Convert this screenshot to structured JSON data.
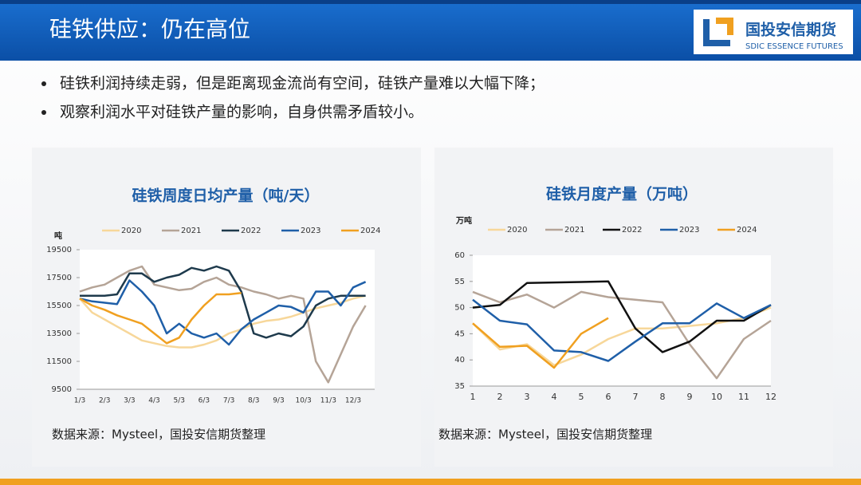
{
  "header": {
    "title": "硅铁供应：仍在高位",
    "logo_cn": "国投安信期货",
    "logo_en": "SDIC ESSENCE FUTURES"
  },
  "bullets": [
    "硅铁利润持续走弱，但是距离现金流尚有空间，硅铁产量难以大幅下降；",
    "观察利润水平对硅铁产量的影响，自身供需矛盾较小。"
  ],
  "sources": [
    "数据来源：Mysteel，国投安信期货整理",
    "数据来源：Mysteel，国投安信期货整理"
  ],
  "chart_data": [
    {
      "type": "line",
      "title": "硅铁周度日均产量（吨/天）",
      "y_label": "吨",
      "categories": [
        "1/3",
        null,
        "2/3",
        null,
        "3/3",
        null,
        "4/3",
        null,
        "5/3",
        null,
        "6/3",
        null,
        "7/3",
        null,
        "8/3",
        null,
        "9/3",
        null,
        "10/3",
        null,
        "11/3",
        null,
        "12/3",
        null
      ],
      "ylim": [
        9500,
        19500
      ],
      "yticks": [
        9500,
        11500,
        13500,
        15500,
        17500,
        19500
      ],
      "series": [
        {
          "name": "2020",
          "color": "#f7d79a",
          "values": [
            16000,
            15000,
            14500,
            14000,
            13500,
            13000,
            12800,
            12600,
            12500,
            12500,
            12700,
            13000,
            13500,
            13800,
            14200,
            14400,
            14500,
            14700,
            15000,
            15300,
            15500,
            15700,
            16000,
            16200
          ]
        },
        {
          "name": "2021",
          "color": "#b5a497",
          "values": [
            16500,
            16800,
            17000,
            17500,
            18000,
            18300,
            17000,
            16800,
            16600,
            16700,
            17200,
            17500,
            17000,
            16800,
            16500,
            16300,
            16000,
            16200,
            16000,
            11500,
            10000,
            12000,
            14000,
            15500
          ]
        },
        {
          "name": "2022",
          "color": "#1e3a4c",
          "values": [
            16200,
            16200,
            16200,
            16300,
            17800,
            17800,
            17200,
            17500,
            17700,
            18200,
            18000,
            18300,
            18000,
            16500,
            13500,
            13200,
            13500,
            13300,
            14000,
            15500,
            16000,
            16200,
            16200,
            16200
          ]
        },
        {
          "name": "2023",
          "color": "#1f5fa8",
          "values": [
            16000,
            15800,
            15700,
            15600,
            17300,
            16500,
            15500,
            13500,
            14200,
            13500,
            13200,
            13500,
            12700,
            13800,
            14500,
            15000,
            15500,
            15400,
            15000,
            16500,
            16500,
            15500,
            16800,
            17200
          ]
        },
        {
          "name": "2024",
          "color": "#f0a020",
          "values": [
            16000,
            15500,
            15200,
            14800,
            14500,
            14200,
            13500,
            12800,
            13200,
            14500,
            15500,
            16300,
            16300,
            16400,
            null,
            null,
            null,
            null,
            null,
            null,
            null,
            null,
            null,
            null
          ]
        }
      ]
    },
    {
      "type": "line",
      "title": "硅铁月度产量（万吨）",
      "y_label": "万吨",
      "categories": [
        "1",
        "2",
        "3",
        "4",
        "5",
        "6",
        "7",
        "8",
        "9",
        "10",
        "11",
        "12"
      ],
      "ylim": [
        35,
        60
      ],
      "yticks": [
        35,
        40,
        45,
        50,
        55,
        60
      ],
      "series": [
        {
          "name": "2020",
          "color": "#f7d79a",
          "values": [
            47,
            42,
            43,
            39,
            41,
            44,
            46,
            46,
            46.5,
            47,
            48,
            50
          ]
        },
        {
          "name": "2021",
          "color": "#b5a497",
          "values": [
            53,
            51,
            52.5,
            50,
            53,
            52,
            51.5,
            51,
            43,
            36.5,
            44,
            47.5
          ]
        },
        {
          "name": "2022",
          "color": "#111111",
          "values": [
            50,
            50.5,
            54.7,
            54.8,
            54.9,
            55,
            46,
            41.5,
            43.5,
            47.5,
            47.5,
            50.5
          ]
        },
        {
          "name": "2023",
          "color": "#1f5fa8",
          "values": [
            51.5,
            47.5,
            46.8,
            41.8,
            41.5,
            39.8,
            43.5,
            47,
            47,
            50.8,
            48,
            50.5
          ]
        },
        {
          "name": "2024",
          "color": "#f0a020",
          "values": [
            47,
            42.5,
            42.7,
            38.5,
            45,
            48,
            null,
            null,
            null,
            null,
            null,
            null
          ]
        }
      ]
    }
  ]
}
